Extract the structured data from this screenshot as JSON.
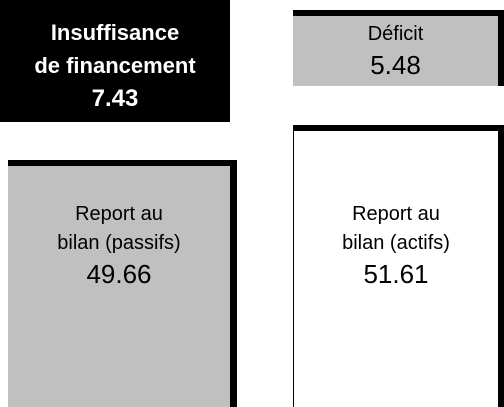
{
  "boxes": [
    {
      "label": [
        "Insuffisance",
        "de financement"
      ],
      "value": 7.43
    },
    {
      "label": [
        "Déficit"
      ],
      "value": 5.48
    },
    {
      "label": [
        "Report au",
        "bilan (passifs)"
      ],
      "value": 49.66
    },
    {
      "label": [
        "Report au",
        "bilan (actifs)"
      ],
      "value": 51.61
    }
  ]
}
